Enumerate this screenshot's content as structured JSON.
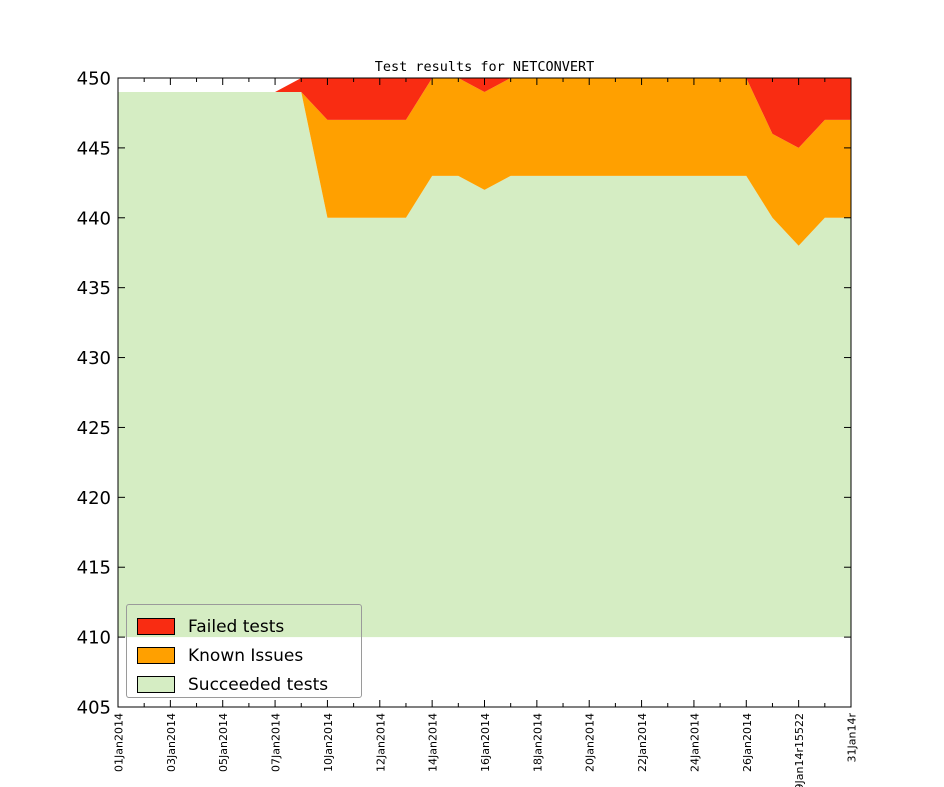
{
  "title": "Test results for NETCONVERT",
  "chart_data": {
    "type": "area",
    "stacked": true,
    "title": "Test results for NETCONVERT",
    "ylabel": "",
    "xlabel": "",
    "ylim": [
      405,
      450
    ],
    "y_ticks": [
      405,
      410,
      415,
      420,
      425,
      430,
      435,
      440,
      445,
      450
    ],
    "area_fill_baseline": 410,
    "grid": false,
    "x_count": 29,
    "x_tick_labels": [
      "01Jan2014",
      "03Jan2014",
      "05Jan2014",
      "07Jan2014",
      "10Jan2014",
      "12Jan2014",
      "14Jan2014",
      "16Jan2014",
      "18Jan2014",
      "20Jan2014",
      "22Jan2014",
      "24Jan2014",
      "26Jan2014",
      "29Jan14r15522",
      "31Jan14r"
    ],
    "x_label_every_nth_tick": 2,
    "series": [
      {
        "name": "Succeeded tests",
        "color": "#D5EDC3",
        "values": [
          449,
          449,
          449,
          449,
          449,
          449,
          449,
          449,
          440,
          440,
          440,
          440,
          443,
          443,
          442,
          443,
          443,
          443,
          443,
          443,
          443,
          443,
          443,
          443,
          443,
          440,
          438,
          440,
          440
        ]
      },
      {
        "name": "Known Issues",
        "color": "#FFA000",
        "values": [
          0,
          0,
          0,
          0,
          0,
          0,
          0,
          0,
          7,
          7,
          7,
          7,
          7,
          7,
          7,
          7,
          7,
          7,
          7,
          7,
          7,
          7,
          7,
          7,
          7,
          6,
          7,
          7,
          7
        ]
      },
      {
        "name": "Failed tests",
        "color": "#F92C12",
        "values": [
          0,
          0,
          0,
          0,
          0,
          0,
          0,
          1,
          3,
          3,
          3,
          3,
          0,
          0,
          1,
          0,
          0,
          0,
          0,
          0,
          0,
          0,
          0,
          0,
          0,
          4,
          5,
          3,
          3
        ]
      }
    ],
    "stack_totals": [
      449,
      449,
      449,
      449,
      449,
      449,
      449,
      450,
      450,
      450,
      450,
      450,
      450,
      450,
      450,
      450,
      450,
      450,
      450,
      450,
      450,
      450,
      450,
      450,
      450,
      450,
      450,
      450,
      450
    ],
    "legend_position": "lower left"
  },
  "legend": {
    "items": [
      {
        "label": "Failed tests",
        "color": "#F92C12"
      },
      {
        "label": "Known Issues",
        "color": "#FFA000"
      },
      {
        "label": "Succeeded tests",
        "color": "#D5EDC3"
      }
    ]
  },
  "axes": {
    "tick_color": "#000000",
    "frame_color": "#000000"
  }
}
